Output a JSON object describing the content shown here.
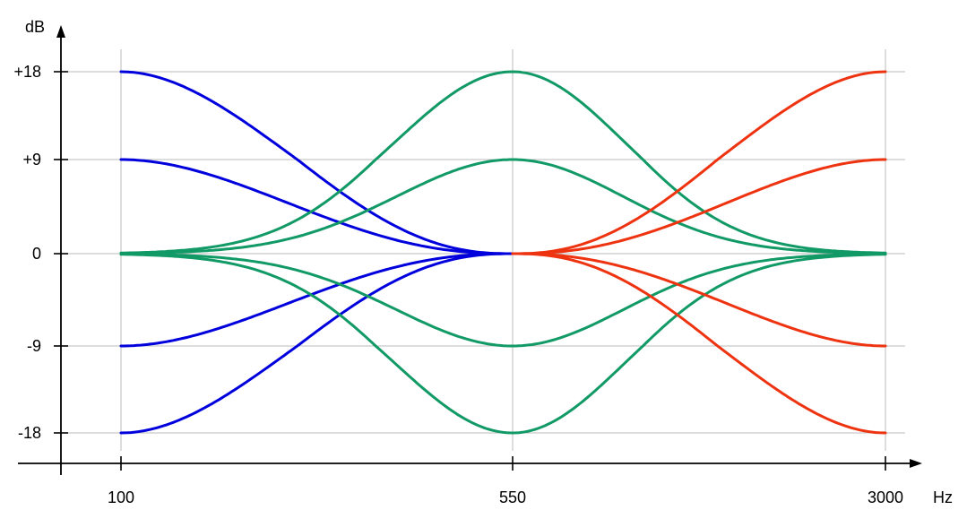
{
  "chart_data": {
    "type": "line",
    "title": "",
    "ylabel": "dB",
    "xlabel": "Hz",
    "x_ticks": [
      "100",
      "550",
      "3000"
    ],
    "y_ticks": [
      "+18",
      "+9",
      "0",
      "-9",
      "-18"
    ],
    "ylim": [
      -18,
      18
    ],
    "grid": true,
    "legend": "none",
    "colors": {
      "low": "#0000dd",
      "mid": "#119966",
      "high": "#ee3311",
      "grid": "#bbbbbb",
      "axis": "#000000"
    },
    "series": [
      {
        "group": "low",
        "x": [
          100,
          550
        ],
        "y_start": 18,
        "y_end": 0
      },
      {
        "group": "low",
        "x": [
          100,
          550
        ],
        "y_start": 9,
        "y_end": 0
      },
      {
        "group": "low",
        "x": [
          100,
          550
        ],
        "y_start": -9,
        "y_end": 0
      },
      {
        "group": "low",
        "x": [
          100,
          550
        ],
        "y_start": -18,
        "y_end": 0
      },
      {
        "group": "mid",
        "x": [
          100,
          550,
          3000
        ],
        "y_peak": 18
      },
      {
        "group": "mid",
        "x": [
          100,
          550,
          3000
        ],
        "y_peak": 9
      },
      {
        "group": "mid",
        "x": [
          100,
          550,
          3000
        ],
        "y_peak": -9
      },
      {
        "group": "mid",
        "x": [
          100,
          550,
          3000
        ],
        "y_peak": -18
      },
      {
        "group": "high",
        "x": [
          550,
          3000
        ],
        "y_start": 0,
        "y_end": 18
      },
      {
        "group": "high",
        "x": [
          550,
          3000
        ],
        "y_start": 0,
        "y_end": 9
      },
      {
        "group": "high",
        "x": [
          550,
          3000
        ],
        "y_start": 0,
        "y_end": -9
      },
      {
        "group": "high",
        "x": [
          550,
          3000
        ],
        "y_start": 0,
        "y_end": -18
      }
    ]
  }
}
